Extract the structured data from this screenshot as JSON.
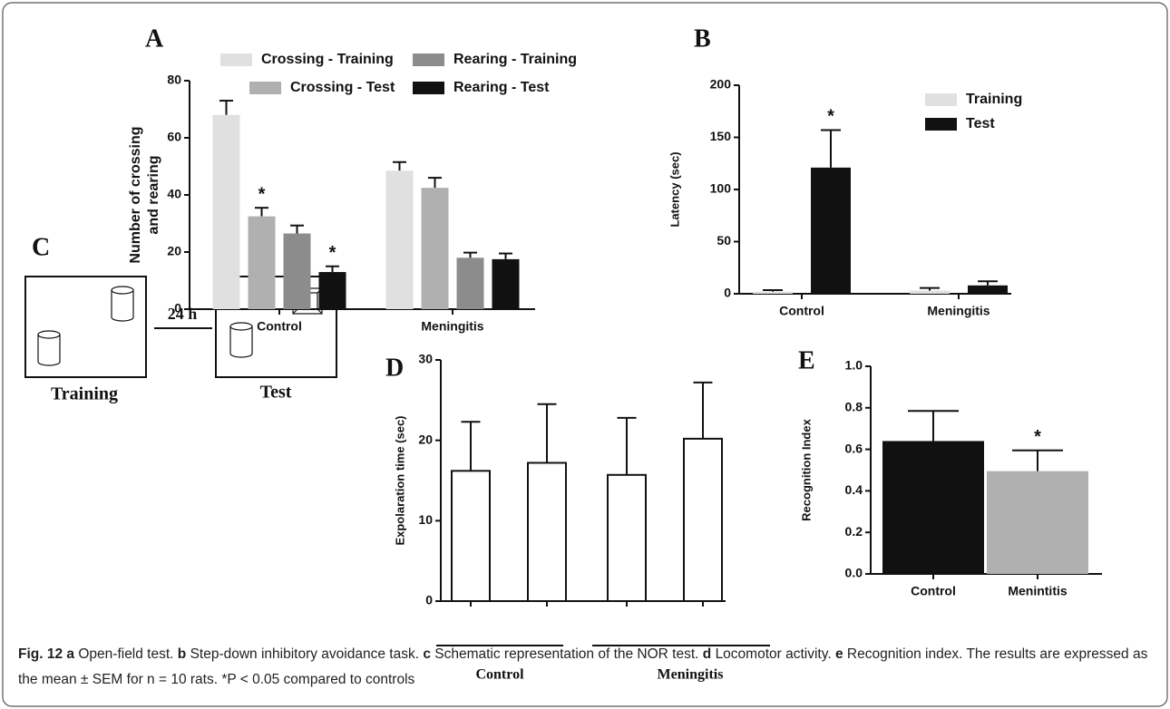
{
  "chart_data": [
    {
      "type": "bar",
      "panel": "A",
      "ylabel": [
        "Number of crossing",
        "and rearing"
      ],
      "categories": [
        "Control",
        "Meningitis"
      ],
      "series": [
        {
          "name": "Crossing - Training",
          "color": "#e0e0e0",
          "values": [
            68,
            48.5
          ],
          "errors": [
            5,
            3
          ]
        },
        {
          "name": "Crossing - Test",
          "color": "#b0b0b0",
          "values": [
            32.5,
            42.5
          ],
          "errors": [
            3,
            3.5
          ]
        },
        {
          "name": "Rearing - Training",
          "color": "#8c8c8c",
          "values": [
            26.5,
            18
          ],
          "errors": [
            2.8,
            1.8
          ]
        },
        {
          "name": "Rearing - Test",
          "color": "#111111",
          "values": [
            13,
            17.5
          ],
          "errors": [
            2,
            2
          ]
        }
      ],
      "ylim": [
        0,
        80
      ],
      "yticks": [
        0,
        20,
        40,
        60,
        80
      ],
      "annotations": [
        {
          "text": "*",
          "series": 1,
          "index": 0
        },
        {
          "text": "*",
          "series": 3,
          "index": 0
        }
      ]
    },
    {
      "type": "bar",
      "panel": "B",
      "ylabel": [
        "Latency (sec)"
      ],
      "categories": [
        "Control",
        "Meningitis"
      ],
      "series": [
        {
          "name": "Training",
          "color": "#e0e0e0",
          "values": [
            2,
            3
          ],
          "errors": [
            1.5,
            2.5
          ]
        },
        {
          "name": "Test",
          "color": "#111111",
          "values": [
            121,
            8
          ],
          "errors": [
            36,
            4
          ]
        }
      ],
      "ylim": [
        0,
        200
      ],
      "yticks": [
        0,
        50,
        100,
        150,
        200
      ],
      "annotations": [
        {
          "text": "*",
          "series": 1,
          "index": 0
        }
      ]
    },
    {
      "type": "bar",
      "panel": "D",
      "ylabel": [
        "Expolaration time (sec)"
      ],
      "categories": [
        "Control",
        "Meningitis"
      ],
      "series": [
        {
          "color": "#ffffff",
          "values": [
            16.2,
            15.7
          ],
          "errors": [
            6.1,
            7.1
          ]
        },
        {
          "color": "#ffffff",
          "values": [
            17.2,
            20.2
          ],
          "errors": [
            7.3,
            7
          ]
        }
      ],
      "ylim": [
        0,
        30
      ],
      "yticks": [
        0,
        10,
        20,
        30
      ]
    },
    {
      "type": "bar",
      "panel": "E",
      "ylabel": [
        "Recognition Index"
      ],
      "categories": [
        "Control",
        "Menintitis"
      ],
      "series": [
        {
          "colors": [
            "#111111",
            "#b0b0b0"
          ],
          "values": [
            0.64,
            0.495
          ],
          "errors": [
            0.145,
            0.1
          ]
        }
      ],
      "ylim": [
        0,
        1
      ],
      "yticks": [
        {
          "value": 0,
          "label": "0.0"
        },
        {
          "value": 0.2,
          "label": "0.2"
        },
        {
          "value": 0.4,
          "label": "0.4"
        },
        {
          "value": 0.6,
          "label": "0.6"
        },
        {
          "value": 0.8,
          "label": "0.8"
        },
        {
          "value": 1,
          "label": "1.0"
        }
      ],
      "annotations": [
        {
          "text": "*",
          "series": 0,
          "index": 1
        }
      ]
    }
  ],
  "diagram": {
    "panel": "C",
    "interval": "24 h",
    "left_label": "Training",
    "right_label": "Test"
  },
  "caption": {
    "label": "Fig. 12",
    "items": [
      {
        "letter": "a",
        "text": "Open-field test."
      },
      {
        "letter": "b",
        "text": "Step-down inhibitory avoidance task."
      },
      {
        "letter": "c",
        "text": "Schematic representation of the NOR test."
      },
      {
        "letter": "d",
        "text": "Locomotor activity."
      },
      {
        "letter": "e",
        "text": "Recognition index."
      }
    ],
    "footer": "The results are expressed as the mean ± SEM for n = 10 rats. *P < 0.05 compared to controls"
  }
}
